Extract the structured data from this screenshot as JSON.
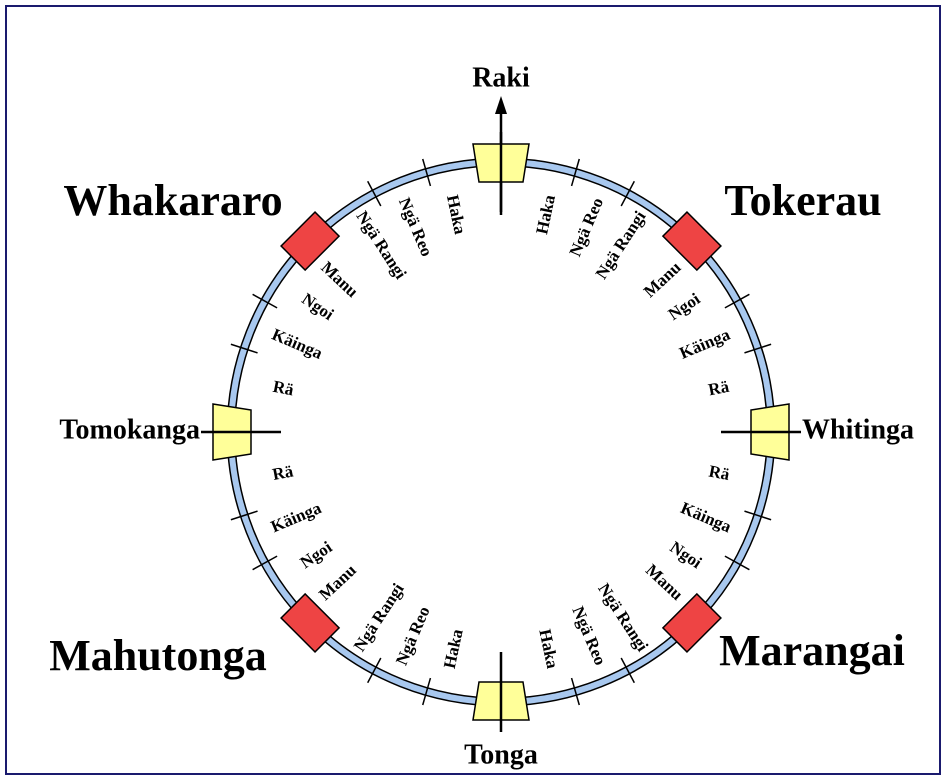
{
  "directions": {
    "north": "Raki",
    "south": "Tonga",
    "west": "Tomokanga",
    "east": "Whitinga"
  },
  "quadrants": {
    "northwest": "Whakararo",
    "northeast": "Tokerau",
    "southwest": "Mahutonga",
    "southeast": "Marangai"
  },
  "segments": [
    "Haka",
    "Ngä Reo",
    "Ngä Rangi",
    "Manu",
    "Ngoi",
    "Käinga",
    "Rä"
  ]
}
